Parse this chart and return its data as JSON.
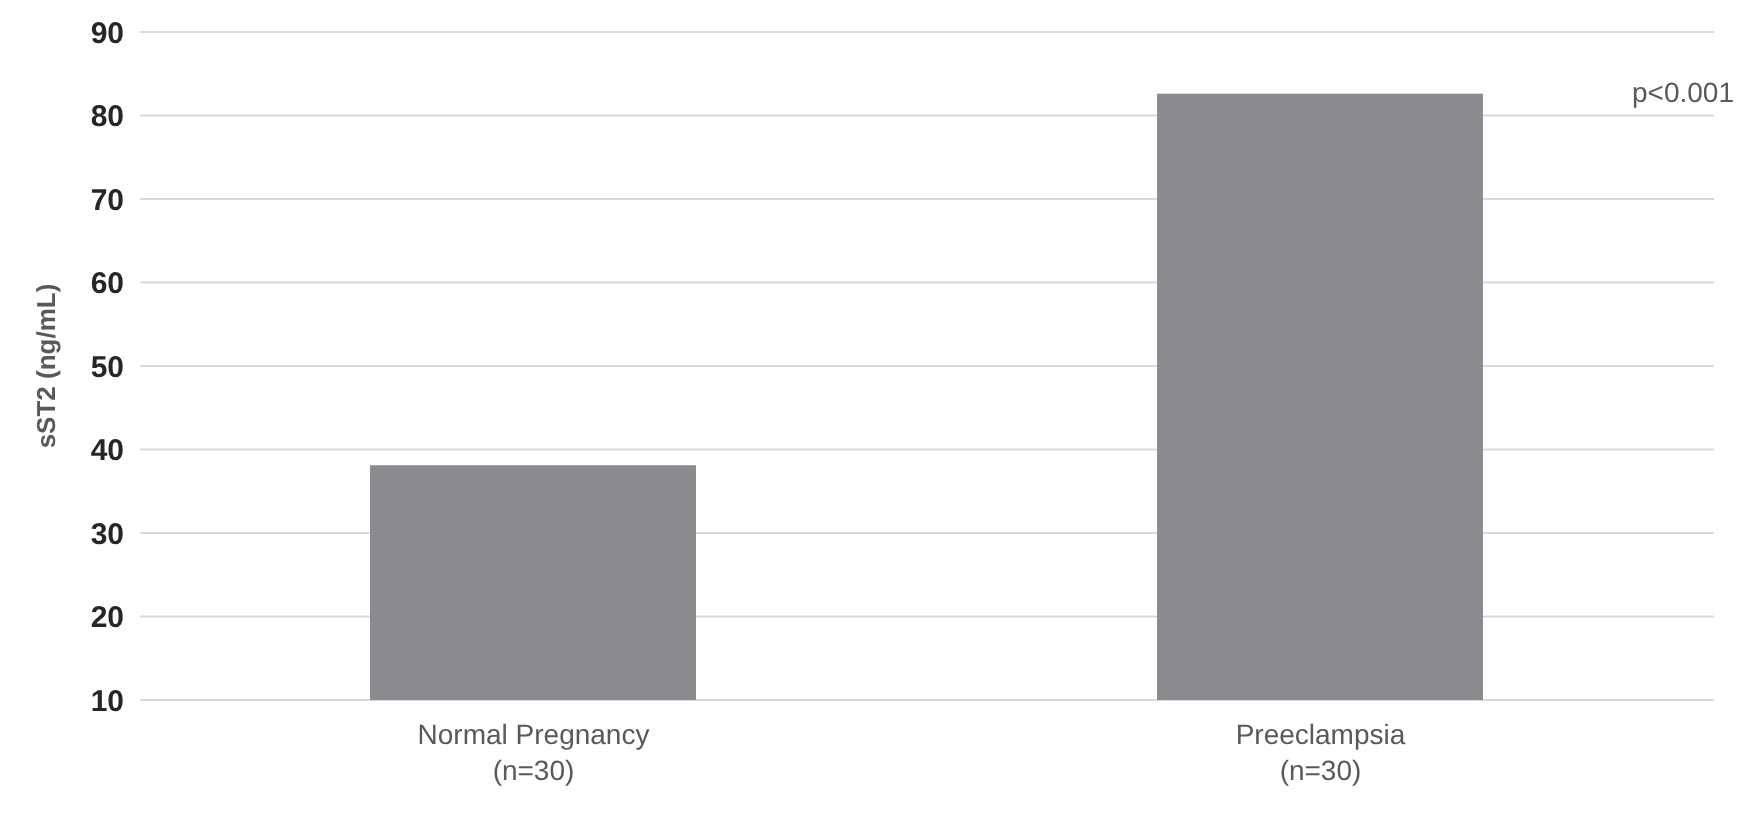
{
  "chart_data": {
    "type": "bar",
    "ylabel": "sST2 (ng/mL)",
    "categories": [
      "Normal Pregnancy\n(n=30)",
      "Preeclampsia\n(n=30)"
    ],
    "values": [
      38.1,
      82.6
    ],
    "color": "#8a8b8e",
    "ylim": [
      10,
      90
    ],
    "yticks": [
      10,
      20,
      30,
      40,
      50,
      60,
      70,
      80,
      90
    ],
    "grid": "y",
    "annotations": [
      "p<0.001"
    ]
  }
}
